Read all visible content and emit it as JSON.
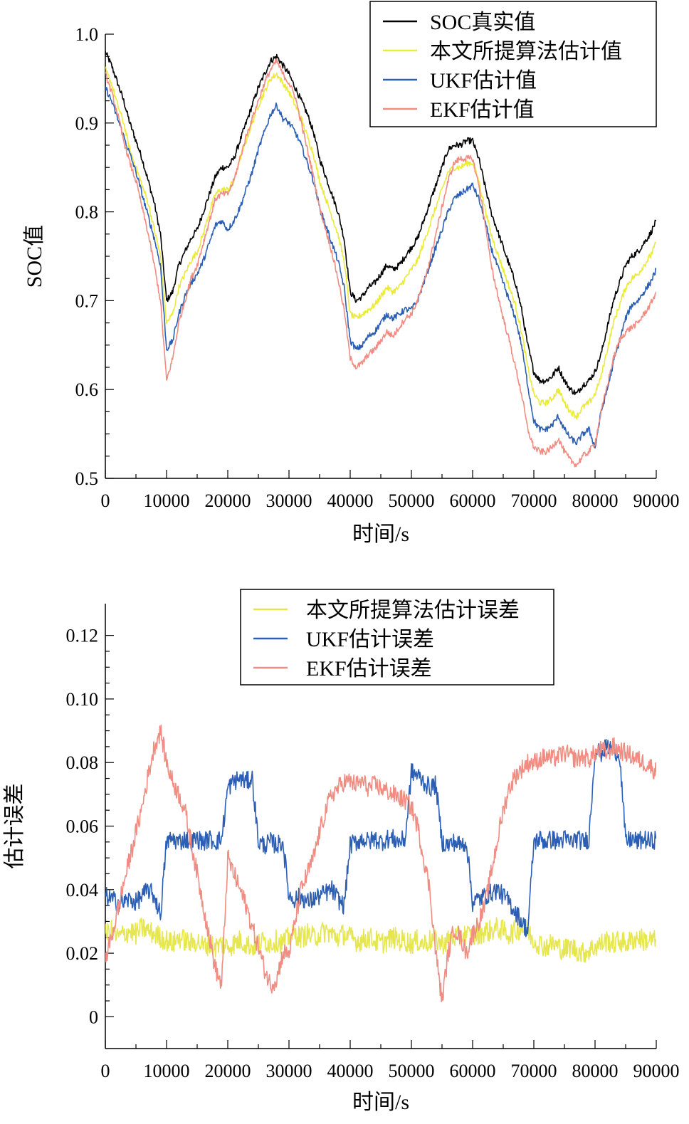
{
  "chart_data": [
    {
      "type": "line",
      "xlabel": "时间/s",
      "ylabel": "SOC值",
      "xlim": [
        0,
        90000
      ],
      "ylim": [
        0.5,
        1.0
      ],
      "xticks": [
        0,
        10000,
        20000,
        30000,
        40000,
        50000,
        60000,
        70000,
        80000,
        90000
      ],
      "xtick_labels": [
        "0",
        "10000",
        "20000",
        "30000",
        "40000",
        "50000",
        "60000",
        "70000",
        "80000",
        "90000"
      ],
      "yticks": [
        0.5,
        0.6,
        0.7,
        0.8,
        0.9,
        1.0
      ],
      "ytick_labels": [
        "0.5",
        "0.6",
        "0.7",
        "0.8",
        "0.9",
        "1.0"
      ],
      "legend_position": "top-right",
      "grid": false,
      "x": [
        0,
        1000,
        2000,
        3000,
        4000,
        5000,
        6000,
        7000,
        8000,
        9000,
        10000,
        11000,
        12000,
        13000,
        14000,
        15000,
        16000,
        17000,
        18000,
        19000,
        20000,
        21000,
        22000,
        23000,
        24000,
        25000,
        26000,
        27000,
        28000,
        29000,
        30000,
        31000,
        32000,
        33000,
        34000,
        35000,
        36000,
        37000,
        38000,
        39000,
        40000,
        41000,
        42000,
        43000,
        44000,
        45000,
        46000,
        47000,
        48000,
        49000,
        50000,
        51000,
        52000,
        53000,
        54000,
        55000,
        56000,
        57000,
        58000,
        59000,
        60000,
        61000,
        62000,
        63000,
        64000,
        65000,
        66000,
        67000,
        68000,
        69000,
        70000,
        71000,
        72000,
        73000,
        74000,
        75000,
        76000,
        77000,
        78000,
        79000,
        80000,
        81000,
        82000,
        83000,
        84000,
        85000,
        86000,
        87000,
        88000,
        89000,
        90000
      ],
      "series": [
        {
          "name": "SOC真实值",
          "color": "#000000",
          "values": [
            0.98,
            0.965,
            0.945,
            0.925,
            0.9,
            0.88,
            0.86,
            0.835,
            0.81,
            0.775,
            0.7,
            0.71,
            0.74,
            0.755,
            0.77,
            0.78,
            0.8,
            0.82,
            0.84,
            0.85,
            0.85,
            0.86,
            0.88,
            0.9,
            0.92,
            0.94,
            0.955,
            0.97,
            0.975,
            0.965,
            0.955,
            0.94,
            0.925,
            0.91,
            0.89,
            0.86,
            0.84,
            0.82,
            0.8,
            0.77,
            0.71,
            0.7,
            0.705,
            0.715,
            0.72,
            0.73,
            0.74,
            0.735,
            0.74,
            0.75,
            0.76,
            0.77,
            0.79,
            0.81,
            0.83,
            0.85,
            0.87,
            0.875,
            0.875,
            0.88,
            0.88,
            0.86,
            0.83,
            0.8,
            0.78,
            0.76,
            0.74,
            0.72,
            0.69,
            0.65,
            0.62,
            0.61,
            0.61,
            0.615,
            0.625,
            0.61,
            0.6,
            0.595,
            0.605,
            0.61,
            0.62,
            0.64,
            0.67,
            0.7,
            0.72,
            0.74,
            0.75,
            0.755,
            0.765,
            0.775,
            0.79
          ]
        },
        {
          "name": "本文所提算法估计值",
          "color": "#ebeb3c",
          "values": [
            0.96,
            0.945,
            0.92,
            0.9,
            0.87,
            0.85,
            0.83,
            0.81,
            0.78,
            0.75,
            0.675,
            0.685,
            0.715,
            0.73,
            0.745,
            0.755,
            0.775,
            0.8,
            0.82,
            0.825,
            0.825,
            0.835,
            0.86,
            0.88,
            0.9,
            0.92,
            0.935,
            0.95,
            0.955,
            0.945,
            0.935,
            0.92,
            0.905,
            0.885,
            0.865,
            0.835,
            0.815,
            0.795,
            0.775,
            0.745,
            0.685,
            0.68,
            0.685,
            0.69,
            0.695,
            0.705,
            0.715,
            0.71,
            0.715,
            0.725,
            0.735,
            0.745,
            0.765,
            0.785,
            0.805,
            0.825,
            0.845,
            0.85,
            0.85,
            0.855,
            0.855,
            0.835,
            0.805,
            0.775,
            0.755,
            0.735,
            0.715,
            0.695,
            0.665,
            0.625,
            0.595,
            0.585,
            0.585,
            0.59,
            0.6,
            0.585,
            0.575,
            0.57,
            0.58,
            0.585,
            0.595,
            0.615,
            0.645,
            0.675,
            0.695,
            0.715,
            0.725,
            0.73,
            0.74,
            0.75,
            0.765
          ]
        },
        {
          "name": "UKF估计值",
          "color": "#2c5fb4",
          "values": [
            0.94,
            0.925,
            0.905,
            0.885,
            0.865,
            0.845,
            0.82,
            0.795,
            0.77,
            0.74,
            0.645,
            0.655,
            0.685,
            0.705,
            0.72,
            0.73,
            0.745,
            0.765,
            0.785,
            0.79,
            0.78,
            0.79,
            0.805,
            0.825,
            0.845,
            0.87,
            0.89,
            0.91,
            0.92,
            0.905,
            0.9,
            0.89,
            0.875,
            0.855,
            0.835,
            0.805,
            0.785,
            0.765,
            0.745,
            0.715,
            0.655,
            0.645,
            0.65,
            0.66,
            0.665,
            0.675,
            0.685,
            0.68,
            0.685,
            0.69,
            0.69,
            0.7,
            0.72,
            0.74,
            0.76,
            0.78,
            0.8,
            0.815,
            0.82,
            0.825,
            0.83,
            0.815,
            0.79,
            0.76,
            0.74,
            0.72,
            0.7,
            0.68,
            0.65,
            0.605,
            0.565,
            0.555,
            0.555,
            0.56,
            0.57,
            0.555,
            0.545,
            0.54,
            0.55,
            0.555,
            0.535,
            0.575,
            0.6,
            0.63,
            0.655,
            0.68,
            0.695,
            0.7,
            0.71,
            0.72,
            0.735
          ]
        },
        {
          "name": "EKF估计值",
          "color": "#f08c82",
          "values": [
            0.955,
            0.935,
            0.91,
            0.88,
            0.855,
            0.835,
            0.805,
            0.775,
            0.74,
            0.7,
            0.61,
            0.635,
            0.675,
            0.7,
            0.725,
            0.74,
            0.765,
            0.79,
            0.815,
            0.82,
            0.82,
            0.835,
            0.86,
            0.885,
            0.905,
            0.925,
            0.945,
            0.96,
            0.97,
            0.955,
            0.945,
            0.93,
            0.9,
            0.87,
            0.84,
            0.805,
            0.78,
            0.755,
            0.725,
            0.69,
            0.635,
            0.625,
            0.63,
            0.64,
            0.645,
            0.655,
            0.665,
            0.66,
            0.67,
            0.68,
            0.685,
            0.7,
            0.72,
            0.745,
            0.775,
            0.805,
            0.835,
            0.855,
            0.86,
            0.86,
            0.86,
            0.83,
            0.79,
            0.74,
            0.71,
            0.68,
            0.655,
            0.625,
            0.595,
            0.555,
            0.535,
            0.53,
            0.53,
            0.535,
            0.545,
            0.53,
            0.52,
            0.515,
            0.525,
            0.53,
            0.54,
            0.575,
            0.605,
            0.635,
            0.655,
            0.665,
            0.67,
            0.675,
            0.685,
            0.695,
            0.71
          ]
        }
      ]
    },
    {
      "type": "line",
      "xlabel": "时间/s",
      "ylabel": "估计误差",
      "xlim": [
        0,
        90000
      ],
      "ylim": [
        -0.01,
        0.13
      ],
      "xticks": [
        0,
        10000,
        20000,
        30000,
        40000,
        50000,
        60000,
        70000,
        80000,
        90000
      ],
      "xtick_labels": [
        "0",
        "10000",
        "20000",
        "30000",
        "40000",
        "50000",
        "60000",
        "70000",
        "80000",
        "90000"
      ],
      "yticks": [
        0,
        0.02,
        0.04,
        0.06,
        0.08,
        0.1,
        0.12
      ],
      "ytick_labels": [
        "0",
        "0.02",
        "0.04",
        "0.06",
        "0.08",
        "0.10",
        "0.12"
      ],
      "legend_position": "top-center",
      "grid": false,
      "x": [
        0,
        1000,
        2000,
        3000,
        4000,
        5000,
        6000,
        7000,
        8000,
        9000,
        10000,
        11000,
        12000,
        13000,
        14000,
        15000,
        16000,
        17000,
        18000,
        19000,
        20000,
        21000,
        22000,
        23000,
        24000,
        25000,
        26000,
        27000,
        28000,
        29000,
        30000,
        31000,
        32000,
        33000,
        34000,
        35000,
        36000,
        37000,
        38000,
        39000,
        40000,
        41000,
        42000,
        43000,
        44000,
        45000,
        46000,
        47000,
        48000,
        49000,
        50000,
        51000,
        52000,
        53000,
        54000,
        55000,
        56000,
        57000,
        58000,
        59000,
        60000,
        61000,
        62000,
        63000,
        64000,
        65000,
        66000,
        67000,
        68000,
        69000,
        70000,
        71000,
        72000,
        73000,
        74000,
        75000,
        76000,
        77000,
        78000,
        79000,
        80000,
        81000,
        82000,
        83000,
        84000,
        85000,
        86000,
        87000,
        88000,
        89000,
        90000
      ],
      "series": [
        {
          "name": "本文所提算法估计误差",
          "color": "#e6e650",
          "values": [
            0.026,
            0.027,
            0.025,
            0.026,
            0.027,
            0.026,
            0.028,
            0.027,
            0.026,
            0.025,
            0.024,
            0.023,
            0.025,
            0.024,
            0.023,
            0.024,
            0.022,
            0.023,
            0.022,
            0.023,
            0.022,
            0.023,
            0.024,
            0.023,
            0.022,
            0.023,
            0.024,
            0.023,
            0.024,
            0.023,
            0.025,
            0.026,
            0.025,
            0.026,
            0.025,
            0.026,
            0.027,
            0.026,
            0.025,
            0.026,
            0.025,
            0.024,
            0.024,
            0.025,
            0.024,
            0.023,
            0.024,
            0.025,
            0.024,
            0.024,
            0.023,
            0.024,
            0.023,
            0.024,
            0.024,
            0.023,
            0.024,
            0.025,
            0.025,
            0.026,
            0.025,
            0.026,
            0.027,
            0.027,
            0.028,
            0.027,
            0.026,
            0.027,
            0.028,
            0.027,
            0.024,
            0.023,
            0.022,
            0.023,
            0.022,
            0.021,
            0.022,
            0.021,
            0.02,
            0.021,
            0.022,
            0.023,
            0.024,
            0.023,
            0.024,
            0.023,
            0.024,
            0.025,
            0.024,
            0.024,
            0.024
          ]
        },
        {
          "name": "UKF估计误差",
          "color": "#2c5fb4",
          "values": [
            0.038,
            0.037,
            0.036,
            0.036,
            0.037,
            0.036,
            0.038,
            0.04,
            0.038,
            0.032,
            0.055,
            0.056,
            0.055,
            0.056,
            0.055,
            0.056,
            0.055,
            0.056,
            0.055,
            0.056,
            0.072,
            0.074,
            0.075,
            0.074,
            0.075,
            0.055,
            0.054,
            0.055,
            0.054,
            0.055,
            0.038,
            0.037,
            0.038,
            0.036,
            0.037,
            0.038,
            0.039,
            0.04,
            0.037,
            0.035,
            0.054,
            0.055,
            0.056,
            0.055,
            0.056,
            0.055,
            0.056,
            0.056,
            0.055,
            0.056,
            0.077,
            0.076,
            0.074,
            0.072,
            0.073,
            0.055,
            0.054,
            0.055,
            0.054,
            0.055,
            0.036,
            0.037,
            0.038,
            0.039,
            0.04,
            0.038,
            0.036,
            0.033,
            0.03,
            0.027,
            0.055,
            0.056,
            0.055,
            0.056,
            0.055,
            0.056,
            0.055,
            0.056,
            0.055,
            0.056,
            0.084,
            0.083,
            0.085,
            0.084,
            0.083,
            0.055,
            0.056,
            0.055,
            0.056,
            0.055,
            0.056
          ]
        },
        {
          "name": "EKF估计误差",
          "color": "#f08c82",
          "values": [
            0.018,
            0.025,
            0.033,
            0.042,
            0.05,
            0.058,
            0.066,
            0.076,
            0.085,
            0.09,
            0.08,
            0.074,
            0.07,
            0.065,
            0.055,
            0.045,
            0.035,
            0.025,
            0.015,
            0.01,
            0.05,
            0.045,
            0.04,
            0.035,
            0.028,
            0.022,
            0.015,
            0.01,
            0.012,
            0.02,
            0.02,
            0.03,
            0.04,
            0.045,
            0.05,
            0.058,
            0.065,
            0.07,
            0.072,
            0.074,
            0.074,
            0.073,
            0.074,
            0.072,
            0.073,
            0.072,
            0.071,
            0.07,
            0.069,
            0.068,
            0.066,
            0.06,
            0.05,
            0.04,
            0.02,
            0.005,
            0.02,
            0.028,
            0.025,
            0.02,
            0.026,
            0.03,
            0.035,
            0.045,
            0.055,
            0.065,
            0.072,
            0.076,
            0.078,
            0.08,
            0.08,
            0.081,
            0.082,
            0.081,
            0.082,
            0.083,
            0.082,
            0.081,
            0.082,
            0.081,
            0.083,
            0.084,
            0.083,
            0.085,
            0.084,
            0.083,
            0.082,
            0.081,
            0.08,
            0.079,
            0.077
          ]
        }
      ]
    }
  ]
}
